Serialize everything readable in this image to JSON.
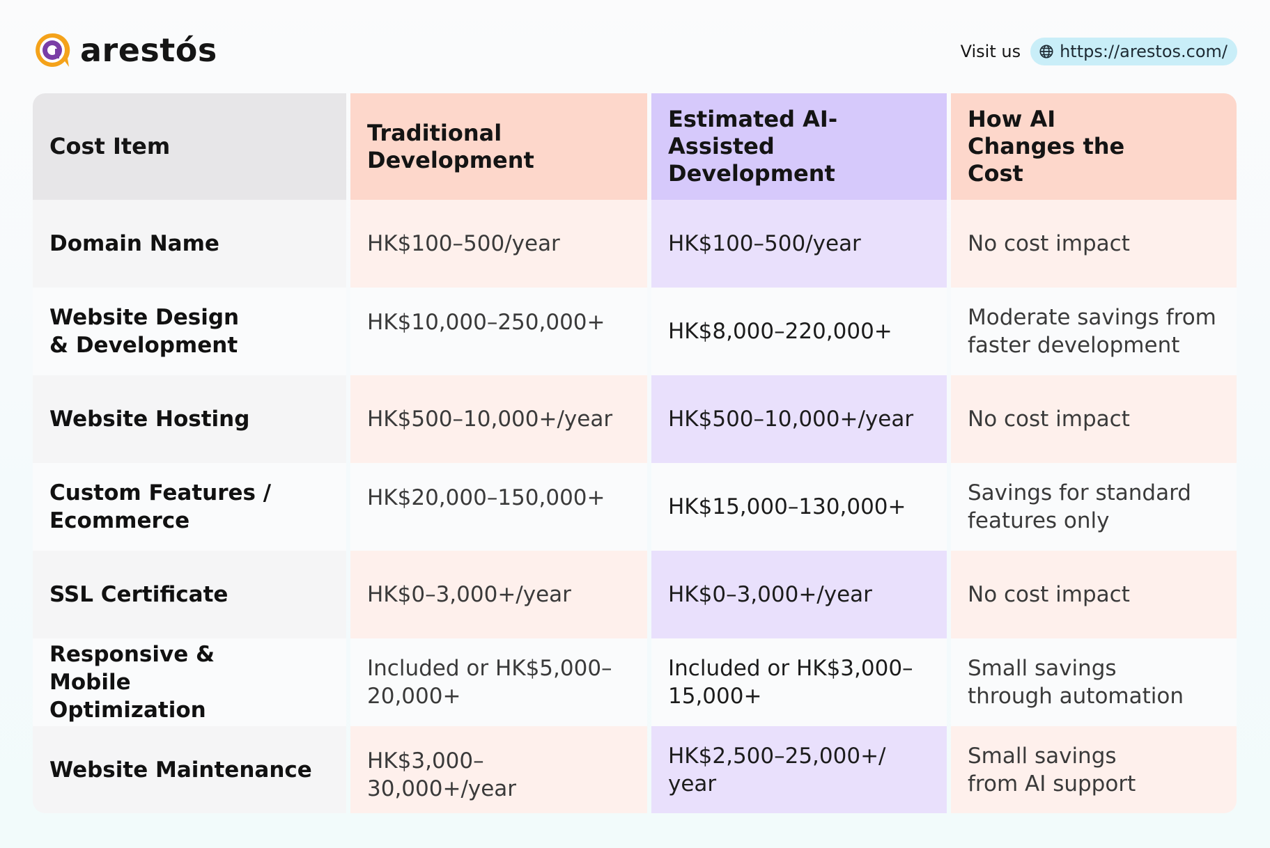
{
  "brand": {
    "name": "arestós",
    "colors": {
      "mark_outer": "#f4a21a",
      "mark_inner": "#7a3ea6"
    }
  },
  "visit": {
    "label": "Visit us",
    "url": "https://arestos.com/"
  },
  "table": {
    "headers": [
      "Cost Item",
      "Traditional Development",
      "Estimated AI-Assisted Development",
      "How AI Changes the Cost"
    ],
    "rows": [
      {
        "item": "Domain Name",
        "traditional": "HK$100–500/year",
        "ai": "HK$100–500/year",
        "impact": "No cost impact"
      },
      {
        "item": "Website Design & Development",
        "traditional": "HK$10,000–250,000+",
        "ai": "HK$8,000–220,000+",
        "impact": "Moderate savings from faster development"
      },
      {
        "item": "Website Hosting",
        "traditional": "HK$500–10,000+/year",
        "ai": "HK$500–10,000+/year",
        "impact": "No cost impact"
      },
      {
        "item": "Custom Features / Ecommerce",
        "traditional": "HK$20,000–150,000+",
        "ai": "HK$15,000–130,000+",
        "impact": "Savings for standard features only"
      },
      {
        "item": "SSL Certificate",
        "traditional": "HK$0–3,000+/year",
        "ai": "HK$0–3,000+/year",
        "impact": "No cost impact"
      },
      {
        "item": "Responsive & Mobile Optimization",
        "traditional": "Included or HK$5,000–20,000+",
        "ai": "Included or HK$3,000–15,000+",
        "impact": "Small savings through automation"
      },
      {
        "item": "Website Maintenance",
        "traditional": "HK$3,000–30,000+/year",
        "ai": "HK$2,500–25,000+/ year",
        "impact": "Small savings from AI support"
      }
    ]
  }
}
